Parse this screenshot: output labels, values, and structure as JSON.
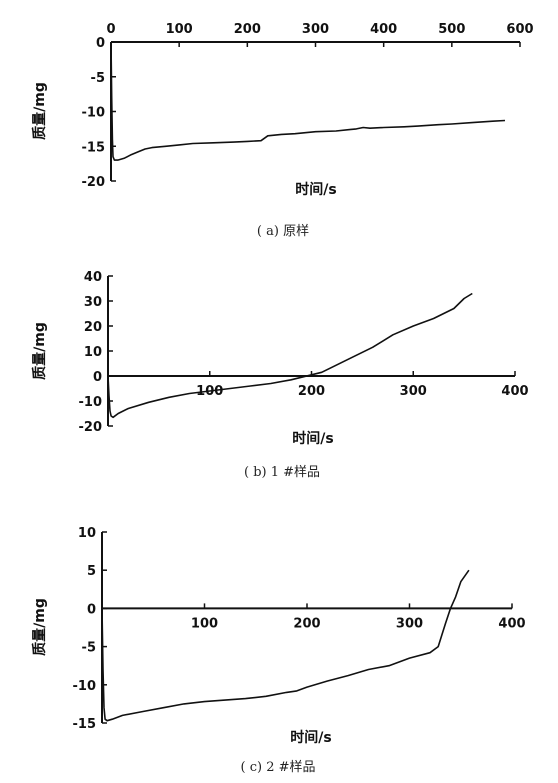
{
  "chart_data": [
    {
      "type": "line",
      "caption": "( a) 原样",
      "xlabel": "时间/s",
      "ylabel": "质量/mg",
      "xlim": [
        0,
        600
      ],
      "ylim": [
        -20,
        0
      ],
      "x_ticks": [
        "0",
        "100",
        "200",
        "300",
        "400",
        "500",
        "600"
      ],
      "y_ticks": [
        "0",
        "-5",
        "-10",
        "-15",
        "-20"
      ],
      "x_tick_values": [
        0,
        100,
        200,
        300,
        400,
        500,
        600
      ],
      "y_tick_values": [
        0,
        -5,
        -10,
        -15,
        -20
      ],
      "x_axis_position": "top",
      "series": [
        {
          "x": [
            0,
            1,
            2,
            3,
            5,
            10,
            20,
            30,
            40,
            50,
            60,
            80,
            100,
            120,
            150,
            180,
            200,
            220,
            230,
            250,
            270,
            300,
            330,
            350,
            360,
            370,
            380,
            400,
            430,
            450,
            480,
            500,
            530,
            560,
            578
          ],
          "y": [
            0,
            -8,
            -14,
            -16.5,
            -17,
            -17,
            -16.7,
            -16.2,
            -15.8,
            -15.4,
            -15.2,
            -15,
            -14.8,
            -14.6,
            -14.5,
            -14.4,
            -14.3,
            -14.2,
            -13.5,
            -13.3,
            -13.2,
            -12.9,
            -12.8,
            -12.6,
            -12.5,
            -12.3,
            -12.4,
            -12.3,
            -12.2,
            -12.1,
            -11.9,
            -11.8,
            -11.6,
            -11.4,
            -11.3
          ]
        }
      ]
    },
    {
      "type": "line",
      "caption": "( b) 1 #样品",
      "xlabel": "时间/s",
      "ylabel": "质量/mg",
      "xlim": [
        0,
        400
      ],
      "ylim": [
        -20,
        40
      ],
      "x_ticks": [
        "100",
        "200",
        "300",
        "400"
      ],
      "y_ticks": [
        "40",
        "30",
        "20",
        "10",
        "0",
        "-10",
        "-20"
      ],
      "x_tick_values": [
        100,
        200,
        300,
        400
      ],
      "y_tick_values": [
        40,
        30,
        20,
        10,
        0,
        -10,
        -20
      ],
      "x_axis_position": "zero",
      "series": [
        {
          "x": [
            0,
            1,
            2,
            3,
            5,
            10,
            20,
            40,
            60,
            80,
            100,
            120,
            140,
            160,
            180,
            190,
            200,
            210,
            220,
            240,
            260,
            280,
            300,
            320,
            340,
            350,
            358
          ],
          "y": [
            0,
            -8,
            -14,
            -16,
            -16.5,
            -15,
            -13,
            -10.5,
            -8.5,
            -7,
            -6,
            -5,
            -4,
            -3,
            -1.5,
            -0.5,
            0.5,
            1.5,
            3.5,
            7.5,
            11.5,
            16.5,
            20,
            23,
            27,
            31,
            33
          ]
        }
      ]
    },
    {
      "type": "line",
      "caption": "( c) 2 #样品",
      "xlabel": "时间/s",
      "ylabel": "质量/mg",
      "xlim": [
        0,
        400
      ],
      "ylim": [
        -15,
        10
      ],
      "x_ticks": [
        "100",
        "200",
        "300",
        "400"
      ],
      "y_ticks": [
        "10",
        "5",
        "0",
        "-5",
        "-10",
        "-15"
      ],
      "x_tick_values": [
        100,
        200,
        300,
        400
      ],
      "y_tick_values": [
        10,
        5,
        0,
        -5,
        -10,
        -15
      ],
      "x_axis_position": "zero",
      "series": [
        {
          "x": [
            0,
            1,
            2,
            3,
            5,
            10,
            20,
            40,
            60,
            80,
            100,
            120,
            140,
            160,
            180,
            190,
            200,
            220,
            240,
            260,
            280,
            300,
            320,
            328,
            335,
            340,
            345,
            350,
            358
          ],
          "y": [
            0,
            -8,
            -13,
            -14.5,
            -14.7,
            -14.5,
            -14,
            -13.5,
            -13,
            -12.5,
            -12.2,
            -12,
            -11.8,
            -11.5,
            -11,
            -10.8,
            -10.3,
            -9.5,
            -8.8,
            -8,
            -7.5,
            -6.5,
            -5.8,
            -5,
            -2,
            0,
            1.5,
            3.5,
            5
          ]
        }
      ]
    }
  ]
}
